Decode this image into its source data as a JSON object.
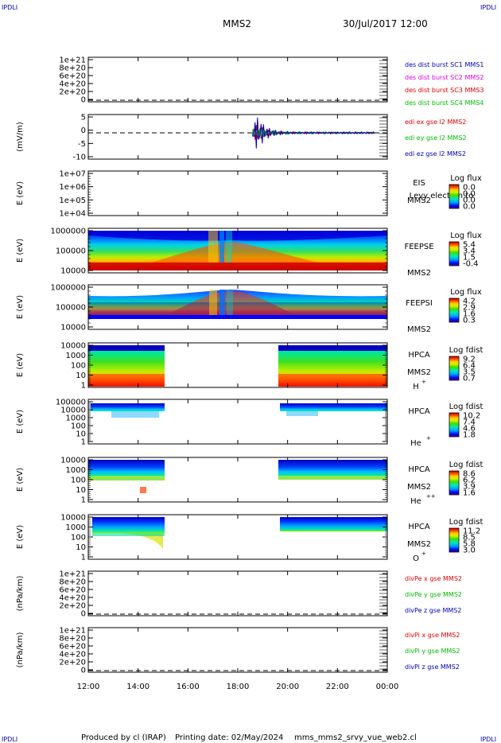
{
  "corners": {
    "top_left": "IPDLI",
    "top_right": "IPDLI",
    "bottom_left": "IPDLI",
    "bottom_right": "IPDLI"
  },
  "header": {
    "spacecraft": "MMS2",
    "datetime": "30/Jul/2017 12:00"
  },
  "footer": {
    "produced_by": "Produced by cl (IRAP)",
    "printing_date": "Printing date: 02/May/2024",
    "script": "mms_mms2_srvy_vue_web2.cl"
  },
  "colors": {
    "red": "#dd0000",
    "green": "#00bb00",
    "blue": "#0000bb",
    "magenta": "#dd00dd"
  },
  "colorbar_palette": [
    "#5a006e",
    "#0000ff",
    "#0060ff",
    "#00c8ff",
    "#00e8a0",
    "#30e000",
    "#c0f000",
    "#ffee00",
    "#ffa000",
    "#ff3000",
    "#c00000"
  ],
  "chart_data": [
    {
      "id": "dist_burst",
      "type": "line",
      "ylabel": "",
      "ylim": [
        0,
        1.1e+21
      ],
      "yticks": [
        "1e+21",
        "8e+20",
        "6e+20",
        "4e+20",
        "2e+20",
        "0"
      ],
      "series": [
        {
          "name": "des dist burst SC1 MMS1",
          "color": "#0000bb"
        },
        {
          "name": "des dist burst SC2 MMS2",
          "color": "#dd00dd"
        },
        {
          "name": "des dist burst SC3 MMS3",
          "color": "#dd0000"
        },
        {
          "name": "des dist burst SC4 MMS4",
          "color": "#00bb00"
        }
      ]
    },
    {
      "id": "edi_e",
      "type": "line",
      "ylabel": "(mV/m)",
      "ylim": [
        -10,
        7
      ],
      "yticks": [
        "5",
        "0",
        "-5",
        "-10"
      ],
      "series": [
        {
          "name": "edi ex gse l2 MMS2",
          "color": "#dd0000"
        },
        {
          "name": "edi ey gse l2 MMS2",
          "color": "#00bb00"
        },
        {
          "name": "edi ez gse l2 MMS2",
          "color": "#0000bb"
        }
      ],
      "activity_interval_hours": [
        18.6,
        23.5
      ],
      "peak_time_hours": 18.8
    },
    {
      "id": "eis",
      "type": "heatmap",
      "ylabel": "E (eV)",
      "yticks": [
        "1e+07",
        "1e+06",
        "1e+05",
        "1e+04"
      ],
      "instrument": "EIS",
      "species": "Levy electron to",
      "spacecraft": "MMS2",
      "colorbar": {
        "title": "Log flux",
        "ticks": [
          "0.0",
          "0.0",
          "0.0",
          "0.0"
        ]
      }
    },
    {
      "id": "feepse",
      "type": "heatmap",
      "ylabel": "E (eV)",
      "yticks": [
        "1000000",
        "100000",
        "10000"
      ],
      "instrument": "FEEPSE",
      "spacecraft": "MMS2",
      "colorbar": {
        "title": "Log flux",
        "ticks": [
          "5.4",
          "3.4",
          "1.5",
          "-0.4"
        ]
      },
      "data_interval_hours": [
        12.0,
        24.0
      ]
    },
    {
      "id": "feepsi",
      "type": "heatmap",
      "ylabel": "E (eV)",
      "yticks": [
        "1000000",
        "100000",
        "10000"
      ],
      "instrument": "FEEPSI",
      "spacecraft": "MMS2",
      "colorbar": {
        "title": "Log flux",
        "ticks": [
          "4.2",
          "2.9",
          "1.6",
          "0.3"
        ]
      },
      "data_interval_hours": [
        12.0,
        24.0
      ]
    },
    {
      "id": "hpca_h",
      "type": "heatmap",
      "ylabel": "E (eV)",
      "yticks": [
        "10000",
        "1000",
        "100",
        "10",
        "1"
      ],
      "instrument": "HPCA",
      "spacecraft": "MMS2",
      "species": "H",
      "species_charge": "+",
      "colorbar": {
        "title": "Log fdist",
        "ticks": [
          "9.2",
          "6.4",
          "3.5",
          "0.7"
        ]
      },
      "data_intervals_hours": [
        [
          12.0,
          15.1
        ],
        [
          19.75,
          24.0
        ]
      ]
    },
    {
      "id": "hpca_he",
      "type": "heatmap",
      "ylabel": "E (eV)",
      "yticks": [
        "100000",
        "10000",
        "1000",
        "100",
        "10",
        "1"
      ],
      "instrument": "HPCA",
      "spacecraft": "",
      "species": "He",
      "species_charge": "+",
      "colorbar": {
        "title": "Log fdist",
        "ticks": [
          "10.2",
          "7.4",
          "4.6",
          "1.8"
        ]
      },
      "data_intervals_hours": [
        [
          12.0,
          15.1
        ],
        [
          19.75,
          24.0
        ]
      ]
    },
    {
      "id": "hpca_he2",
      "type": "heatmap",
      "ylabel": "E (eV)",
      "yticks": [
        "10000",
        "1000",
        "100",
        "10",
        "1"
      ],
      "instrument": "HPCA",
      "spacecraft": "MMS2",
      "species": "He",
      "species_charge": "++",
      "colorbar": {
        "title": "Log fdist",
        "ticks": [
          "8.6",
          "6.2",
          "3.9",
          "1.6"
        ]
      },
      "data_intervals_hours": [
        [
          12.0,
          15.1
        ],
        [
          19.75,
          24.0
        ]
      ]
    },
    {
      "id": "hpca_o",
      "type": "heatmap",
      "ylabel": "E (eV)",
      "yticks": [
        "10000",
        "1000",
        "100",
        "10",
        "1"
      ],
      "instrument": "HPCA",
      "spacecraft": "MMS2",
      "species": "O",
      "species_charge": "+",
      "colorbar": {
        "title": "Log fdist",
        "ticks": [
          "11.2",
          "8.5",
          "5.8",
          "3.0"
        ]
      },
      "data_intervals_hours": [
        [
          12.0,
          15.1
        ],
        [
          19.75,
          24.0
        ]
      ]
    },
    {
      "id": "divpe",
      "type": "line",
      "ylabel": "(nPa/km)",
      "ylim": [
        0,
        1.1e+21
      ],
      "yticks": [
        "1e+21",
        "8e+20",
        "6e+20",
        "4e+20",
        "2e+20",
        "0"
      ],
      "series": [
        {
          "name": "divPe x gse MMS2",
          "color": "#dd0000"
        },
        {
          "name": "divPe y gse MMS2",
          "color": "#00bb00"
        },
        {
          "name": "divPe z gse MMS2",
          "color": "#0000bb"
        }
      ]
    },
    {
      "id": "divpi",
      "type": "line",
      "ylabel": "(nPa/km)",
      "ylim": [
        0,
        1.1e+21
      ],
      "yticks": [
        "1e+21",
        "8e+20",
        "6e+20",
        "4e+20",
        "2e+20",
        "0"
      ],
      "series": [
        {
          "name": "divPi x gse MMS2",
          "color": "#dd0000"
        },
        {
          "name": "divPi y gse MMS2",
          "color": "#00bb00"
        },
        {
          "name": "divPi z gse MMS2",
          "color": "#0000bb"
        }
      ]
    }
  ],
  "time_axis": {
    "start_hours": 12,
    "end_hours": 24,
    "ticks": [
      {
        "hours": 12,
        "label": "12:00"
      },
      {
        "hours": 14,
        "label": "14:00"
      },
      {
        "hours": 16,
        "label": "16:00"
      },
      {
        "hours": 18,
        "label": "18:00"
      },
      {
        "hours": 20,
        "label": "20:00"
      },
      {
        "hours": 22,
        "label": "22:00"
      },
      {
        "hours": 24,
        "label": "00:00"
      }
    ]
  }
}
